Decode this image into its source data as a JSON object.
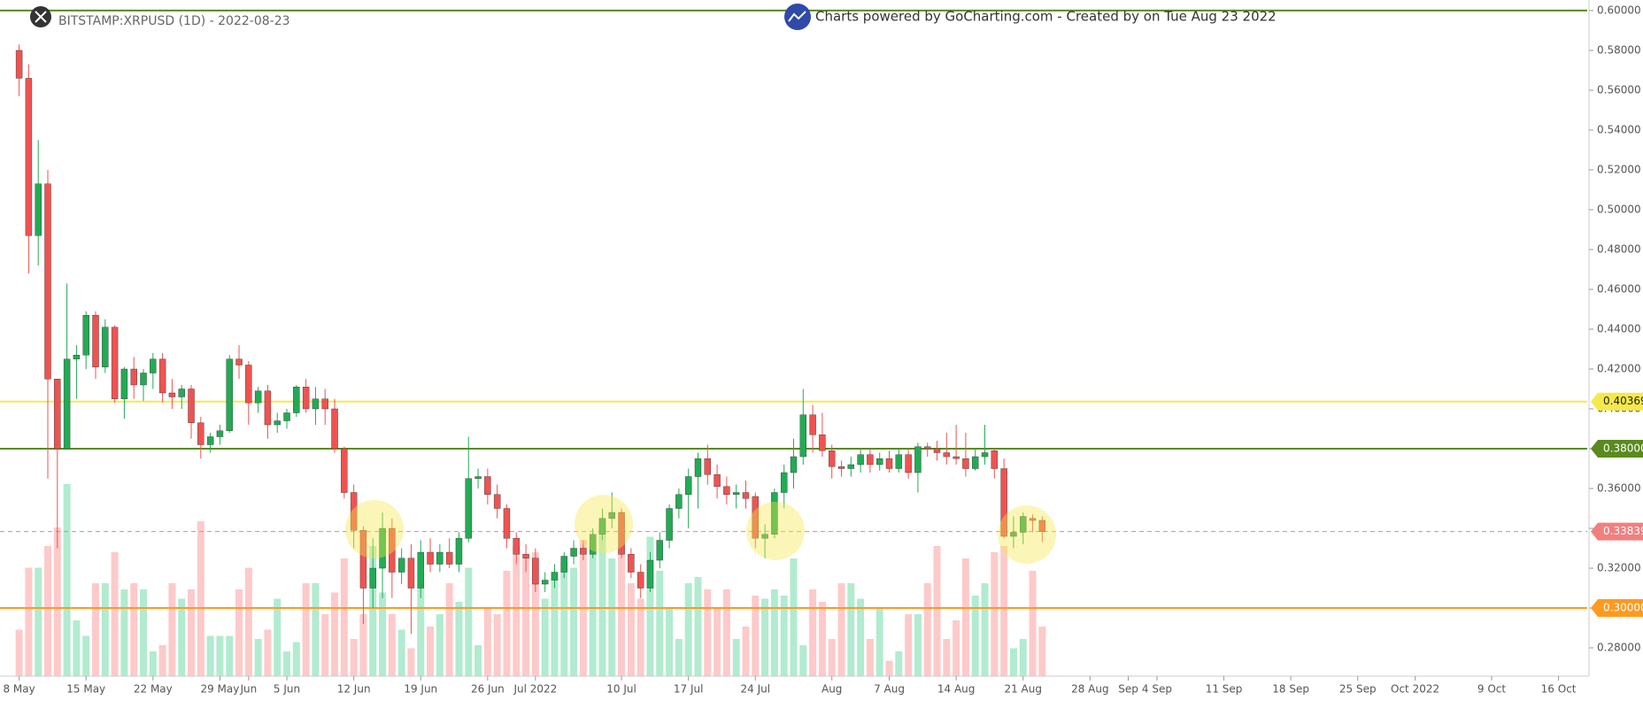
{
  "chart_data": {
    "type": "candlestick",
    "title": "BITSTAMP:XRPUSD (1D) - 2022-08-23",
    "subtitle": "Charts powered by GoCharting.com - Created by  on Tue Aug 23 2022",
    "up_color": "#22ab54",
    "down_color": "#ef5350",
    "volume_up_color": "#b2ebd0",
    "volume_down_color": "#fdcaca",
    "grid": false,
    "x": [
      "2022-05-08",
      "2022-05-09",
      "2022-05-10",
      "2022-05-11",
      "2022-05-12",
      "2022-05-13",
      "2022-05-14",
      "2022-05-15",
      "2022-05-16",
      "2022-05-17",
      "2022-05-18",
      "2022-05-19",
      "2022-05-20",
      "2022-05-21",
      "2022-05-22",
      "2022-05-23",
      "2022-05-24",
      "2022-05-25",
      "2022-05-26",
      "2022-05-27",
      "2022-05-28",
      "2022-05-29",
      "2022-05-30",
      "2022-05-31",
      "2022-06-01",
      "2022-06-02",
      "2022-06-03",
      "2022-06-04",
      "2022-06-05",
      "2022-06-06",
      "2022-06-07",
      "2022-06-08",
      "2022-06-09",
      "2022-06-10",
      "2022-06-11",
      "2022-06-12",
      "2022-06-13",
      "2022-06-14",
      "2022-06-15",
      "2022-06-16",
      "2022-06-17",
      "2022-06-18",
      "2022-06-19",
      "2022-06-20",
      "2022-06-21",
      "2022-06-22",
      "2022-06-23",
      "2022-06-24",
      "2022-06-25",
      "2022-06-26",
      "2022-06-27",
      "2022-06-28",
      "2022-06-29",
      "2022-06-30",
      "2022-07-01",
      "2022-07-02",
      "2022-07-03",
      "2022-07-04",
      "2022-07-05",
      "2022-07-06",
      "2022-07-07",
      "2022-07-08",
      "2022-07-09",
      "2022-07-10",
      "2022-07-11",
      "2022-07-12",
      "2022-07-13",
      "2022-07-14",
      "2022-07-15",
      "2022-07-16",
      "2022-07-17",
      "2022-07-18",
      "2022-07-19",
      "2022-07-20",
      "2022-07-21",
      "2022-07-22",
      "2022-07-23",
      "2022-07-24",
      "2022-07-25",
      "2022-07-26",
      "2022-07-27",
      "2022-07-28",
      "2022-07-29",
      "2022-07-30",
      "2022-07-31",
      "2022-08-01",
      "2022-08-02",
      "2022-08-03",
      "2022-08-04",
      "2022-08-05",
      "2022-08-06",
      "2022-08-07",
      "2022-08-08",
      "2022-08-09",
      "2022-08-10",
      "2022-08-11",
      "2022-08-12",
      "2022-08-13",
      "2022-08-14",
      "2022-08-15",
      "2022-08-16",
      "2022-08-17",
      "2022-08-18",
      "2022-08-19",
      "2022-08-20",
      "2022-08-21",
      "2022-08-22",
      "2022-08-23"
    ],
    "open": [
      0.58,
      0.566,
      0.487,
      0.513,
      0.415,
      0.38,
      0.425,
      0.427,
      0.447,
      0.421,
      0.441,
      0.405,
      0.42,
      0.412,
      0.418,
      0.425,
      0.408,
      0.406,
      0.41,
      0.393,
      0.382,
      0.386,
      0.389,
      0.425,
      0.422,
      0.403,
      0.409,
      0.392,
      0.394,
      0.398,
      0.411,
      0.4,
      0.405,
      0.4,
      0.38,
      0.358,
      0.339,
      0.31,
      0.32,
      0.34,
      0.318,
      0.325,
      0.31,
      0.328,
      0.322,
      0.328,
      0.322,
      0.335,
      0.365,
      0.366,
      0.357,
      0.35,
      0.335,
      0.327,
      0.325,
      0.312,
      0.314,
      0.318,
      0.326,
      0.33,
      0.327,
      0.337,
      0.345,
      0.348,
      0.327,
      0.318,
      0.31,
      0.324,
      0.334,
      0.35,
      0.357,
      0.366,
      0.375,
      0.367,
      0.361,
      0.357,
      0.358,
      0.356,
      0.335,
      0.337,
      0.358,
      0.368,
      0.376,
      0.397,
      0.387,
      0.379,
      0.371,
      0.37,
      0.372,
      0.377,
      0.372,
      0.375,
      0.37,
      0.377,
      0.368,
      0.381,
      0.38,
      0.378,
      0.376,
      0.375,
      0.37,
      0.376,
      0.379,
      0.37,
      0.336,
      0.338,
      0.345,
      0.344
    ],
    "high": [
      0.583,
      0.573,
      0.535,
      0.52,
      0.415,
      0.463,
      0.432,
      0.449,
      0.449,
      0.445,
      0.442,
      0.421,
      0.426,
      0.42,
      0.428,
      0.428,
      0.415,
      0.412,
      0.412,
      0.396,
      0.388,
      0.392,
      0.427,
      0.432,
      0.424,
      0.411,
      0.412,
      0.398,
      0.4,
      0.412,
      0.415,
      0.411,
      0.41,
      0.405,
      0.381,
      0.362,
      0.341,
      0.335,
      0.348,
      0.345,
      0.33,
      0.332,
      0.334,
      0.335,
      0.332,
      0.335,
      0.338,
      0.386,
      0.37,
      0.37,
      0.362,
      0.352,
      0.338,
      0.332,
      0.33,
      0.318,
      0.322,
      0.328,
      0.334,
      0.334,
      0.34,
      0.35,
      0.358,
      0.35,
      0.33,
      0.322,
      0.328,
      0.338,
      0.352,
      0.36,
      0.37,
      0.378,
      0.382,
      0.372,
      0.366,
      0.362,
      0.364,
      0.358,
      0.342,
      0.36,
      0.372,
      0.385,
      0.41,
      0.402,
      0.398,
      0.382,
      0.374,
      0.376,
      0.38,
      0.38,
      0.378,
      0.379,
      0.38,
      0.38,
      0.383,
      0.383,
      0.384,
      0.388,
      0.392,
      0.388,
      0.38,
      0.392,
      0.38,
      0.375,
      0.346,
      0.348,
      0.347,
      0.346
    ],
    "low": [
      0.557,
      0.468,
      0.472,
      0.365,
      0.33,
      0.38,
      0.405,
      0.42,
      0.415,
      0.418,
      0.403,
      0.395,
      0.405,
      0.404,
      0.41,
      0.403,
      0.4,
      0.4,
      0.385,
      0.375,
      0.378,
      0.382,
      0.388,
      0.415,
      0.392,
      0.398,
      0.385,
      0.388,
      0.39,
      0.396,
      0.398,
      0.392,
      0.392,
      0.378,
      0.355,
      0.33,
      0.292,
      0.3,
      0.305,
      0.305,
      0.312,
      0.287,
      0.305,
      0.318,
      0.318,
      0.32,
      0.318,
      0.333,
      0.36,
      0.352,
      0.345,
      0.33,
      0.322,
      0.318,
      0.308,
      0.308,
      0.31,
      0.315,
      0.322,
      0.324,
      0.325,
      0.334,
      0.34,
      0.325,
      0.315,
      0.305,
      0.308,
      0.32,
      0.33,
      0.345,
      0.34,
      0.35,
      0.362,
      0.355,
      0.352,
      0.35,
      0.35,
      0.33,
      0.325,
      0.335,
      0.35,
      0.36,
      0.372,
      0.378,
      0.376,
      0.365,
      0.366,
      0.366,
      0.368,
      0.368,
      0.369,
      0.368,
      0.368,
      0.365,
      0.358,
      0.376,
      0.374,
      0.372,
      0.372,
      0.366,
      0.369,
      0.372,
      0.365,
      0.335,
      0.33,
      0.332,
      0.338,
      0.333
    ],
    "close": [
      0.566,
      0.487,
      0.513,
      0.415,
      0.38,
      0.425,
      0.427,
      0.447,
      0.421,
      0.441,
      0.405,
      0.42,
      0.412,
      0.418,
      0.425,
      0.408,
      0.406,
      0.41,
      0.393,
      0.382,
      0.386,
      0.389,
      0.425,
      0.422,
      0.403,
      0.409,
      0.392,
      0.394,
      0.398,
      0.411,
      0.4,
      0.405,
      0.4,
      0.38,
      0.358,
      0.339,
      0.31,
      0.32,
      0.34,
      0.318,
      0.325,
      0.31,
      0.328,
      0.322,
      0.328,
      0.322,
      0.335,
      0.365,
      0.366,
      0.357,
      0.35,
      0.335,
      0.327,
      0.325,
      0.312,
      0.314,
      0.318,
      0.326,
      0.33,
      0.327,
      0.337,
      0.345,
      0.348,
      0.327,
      0.318,
      0.31,
      0.324,
      0.334,
      0.35,
      0.357,
      0.366,
      0.375,
      0.367,
      0.361,
      0.357,
      0.358,
      0.355,
      0.335,
      0.337,
      0.358,
      0.368,
      0.376,
      0.397,
      0.387,
      0.379,
      0.371,
      0.37,
      0.372,
      0.377,
      0.372,
      0.375,
      0.37,
      0.377,
      0.368,
      0.381,
      0.38,
      0.378,
      0.376,
      0.375,
      0.37,
      0.376,
      0.378,
      0.37,
      0.336,
      0.338,
      0.346,
      0.344,
      0.33839
    ],
    "volume": [
      15,
      35,
      35,
      42,
      48,
      62,
      18,
      13,
      30,
      30,
      40,
      28,
      30,
      28,
      8,
      10,
      30,
      25,
      28,
      50,
      13,
      13,
      13,
      28,
      35,
      12,
      15,
      25,
      8,
      11,
      30,
      30,
      20,
      27,
      38,
      12,
      20,
      42,
      27,
      20,
      15,
      9,
      30,
      16,
      20,
      30,
      24,
      35,
      10,
      22,
      20,
      34,
      42,
      38,
      40,
      25,
      33,
      37,
      35,
      44,
      42,
      50,
      38,
      42,
      30,
      25,
      45,
      34,
      22,
      12,
      30,
      32,
      28,
      22,
      28,
      12,
      16,
      26,
      25,
      28,
      26,
      38,
      10,
      28,
      24,
      12,
      30,
      30,
      25,
      12,
      22,
      5,
      8,
      20,
      20,
      30,
      42,
      12,
      18,
      38,
      26,
      30,
      40,
      42,
      9,
      12,
      34,
      16
    ],
    "xlim": [
      "2022-05-06",
      "2022-10-19"
    ],
    "xticks": [
      {
        "value": "2022-05-08",
        "label": "8 May"
      },
      {
        "value": "2022-05-15",
        "label": "15 May"
      },
      {
        "value": "2022-05-22",
        "label": "22 May"
      },
      {
        "value": "2022-05-29",
        "label": "29 May"
      },
      {
        "value": "2022-06-01",
        "label": "Jun"
      },
      {
        "value": "2022-06-05",
        "label": "5 Jun"
      },
      {
        "value": "2022-06-12",
        "label": "12 Jun"
      },
      {
        "value": "2022-06-19",
        "label": "19 Jun"
      },
      {
        "value": "2022-06-26",
        "label": "26 Jun"
      },
      {
        "value": "2022-07-01",
        "label": "Jul 2022"
      },
      {
        "value": "2022-07-10",
        "label": "10 Jul"
      },
      {
        "value": "2022-07-17",
        "label": "17 Jul"
      },
      {
        "value": "2022-07-24",
        "label": "24 Jul"
      },
      {
        "value": "2022-08-01",
        "label": "Aug"
      },
      {
        "value": "2022-08-07",
        "label": "7 Aug"
      },
      {
        "value": "2022-08-14",
        "label": "14 Aug"
      },
      {
        "value": "2022-08-21",
        "label": "21 Aug"
      },
      {
        "value": "2022-08-28",
        "label": "28 Aug"
      },
      {
        "value": "2022-09-01",
        "label": "Sep"
      },
      {
        "value": "2022-09-04",
        "label": "4 Sep"
      },
      {
        "value": "2022-09-11",
        "label": "11 Sep"
      },
      {
        "value": "2022-09-18",
        "label": "18 Sep"
      },
      {
        "value": "2022-09-25",
        "label": "25 Sep"
      },
      {
        "value": "2022-10-01",
        "label": "Oct 2022"
      },
      {
        "value": "2022-10-09",
        "label": "9 Oct"
      },
      {
        "value": "2022-10-16",
        "label": "16 Oct"
      }
    ],
    "ylim": [
      0.2658,
      0.6053
    ],
    "yticks": [
      {
        "value": 0.28,
        "label": "0.28000"
      },
      {
        "value": 0.3,
        "label": "0.30000"
      },
      {
        "value": 0.32,
        "label": "0.32000"
      },
      {
        "value": 0.34,
        "label": "0.34000"
      },
      {
        "value": 0.36,
        "label": "0.36000"
      },
      {
        "value": 0.38,
        "label": "0.38000"
      },
      {
        "value": 0.4,
        "label": "0.40000"
      },
      {
        "value": 0.42,
        "label": "0.42000"
      },
      {
        "value": 0.44,
        "label": "0.44000"
      },
      {
        "value": 0.46,
        "label": "0.46000"
      },
      {
        "value": 0.48,
        "label": "0.48000"
      },
      {
        "value": 0.5,
        "label": "0.50000"
      },
      {
        "value": 0.52,
        "label": "0.52000"
      },
      {
        "value": 0.54,
        "label": "0.54000"
      },
      {
        "value": 0.56,
        "label": "0.56000"
      },
      {
        "value": 0.58,
        "label": "0.58000"
      },
      {
        "value": 0.6,
        "label": "0.60000"
      }
    ],
    "levels": [
      {
        "value": 0.6,
        "color": "#5a8a1e"
      },
      {
        "value": 0.40369,
        "color": "#f5e94a",
        "label": "0.40369",
        "label_color": "#222"
      },
      {
        "value": 0.38,
        "color": "#5a8a1e",
        "label": "0.38000",
        "label_color": "#fff"
      },
      {
        "value": 0.33839,
        "color": "#f08080",
        "label": "0.33839",
        "label_color": "#fff",
        "dashed": true
      },
      {
        "value": 0.3,
        "color": "#ff9a1f",
        "label": "0.30000",
        "label_color": "#fff"
      }
    ]
  }
}
